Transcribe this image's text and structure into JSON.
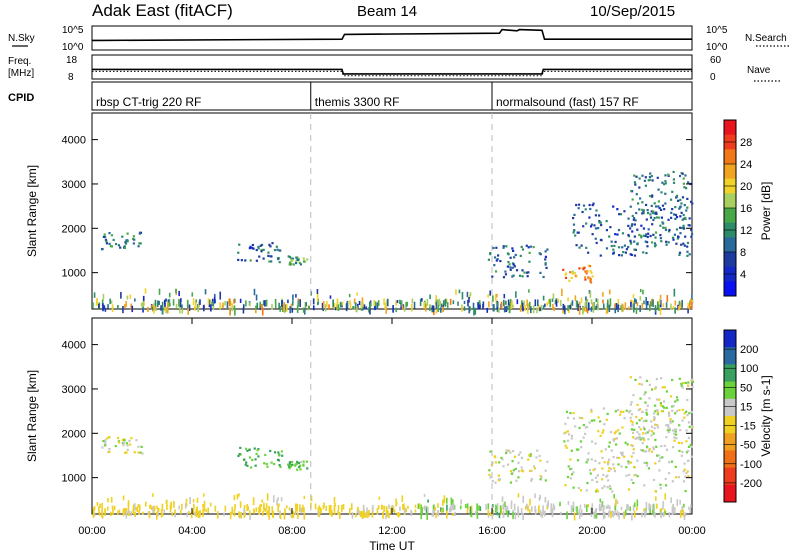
{
  "header": {
    "site": "Adak East (fitACF)",
    "beam": "Beam 14",
    "date": "10/Sep/2015"
  },
  "noise_panel": {
    "left_label": "N.Sky",
    "left_ticks": [
      "10^5",
      "10^0"
    ],
    "right_label": "N.Search",
    "right_ticks": [
      "10^5",
      "10^0"
    ]
  },
  "freq_panel": {
    "left_label_1": "Freq.",
    "left_label_2": "[MHz]",
    "left_ticks": [
      "18",
      "8"
    ],
    "right_label": "Nave",
    "right_ticks": [
      "60",
      "0"
    ]
  },
  "cpid_panel": {
    "label": "CPID",
    "modes": [
      {
        "name": "rbsp CT-trig 220 RF",
        "start_hour": 0
      },
      {
        "name": "themis 3300 RF",
        "start_hour": 8.75
      },
      {
        "name": "normalsound (fast) 157 RF",
        "start_hour": 16
      }
    ]
  },
  "power_colorbar": {
    "label": "Power [dB]",
    "ticks": [
      "28",
      "24",
      "20",
      "16",
      "12",
      "8",
      "4"
    ],
    "colors": [
      "#e8141e",
      "#f03c1e",
      "#f07818",
      "#f0a420",
      "#f0d22a",
      "#a8d060",
      "#48a848",
      "#2e8b6a",
      "#2a6a9a",
      "#1e3ca0",
      "#1428c8",
      "#0a10f0"
    ]
  },
  "velocity_colorbar": {
    "label": "Velocity [m s-1]",
    "ticks": [
      "200",
      "100",
      "50",
      "15",
      "-15",
      "-50",
      "-100",
      "-200"
    ],
    "colors": [
      "#1428c8",
      "#2a6aa0",
      "#3aa060",
      "#6ad23a",
      "#c8c8c8",
      "#f0d020",
      "#f0a020",
      "#f07018",
      "#f03c1e",
      "#e8141e"
    ]
  },
  "axes": {
    "ylabel": "Slant Range [km]",
    "yticks": [
      1000,
      2000,
      3000,
      4000
    ],
    "ylim": [
      180,
      4600
    ],
    "xlabel": "Time UT",
    "xticks": [
      "00:00",
      "04:00",
      "08:00",
      "12:00",
      "16:00",
      "20:00",
      "00:00"
    ],
    "xlim_hours": [
      0,
      24
    ],
    "dashed_lines_hours": [
      8.75,
      16
    ]
  },
  "chart_data": [
    {
      "type": "line",
      "panel": "noise",
      "series": [
        {
          "name": "N.Sky",
          "x": [
            0,
            0.3,
            10,
            10.1,
            16.3,
            16.4,
            17,
            17.1,
            18,
            18.1,
            24
          ],
          "y": [
            0.4,
            0.4,
            0.45,
            0.65,
            0.7,
            0.85,
            0.8,
            0.85,
            0.82,
            0.45,
            0.45
          ]
        },
        {
          "name": "N.Search",
          "x": [
            0,
            24
          ],
          "y": [
            0,
            0
          ]
        }
      ]
    },
    {
      "type": "line",
      "panel": "freq",
      "series": [
        {
          "name": "Freq.",
          "x": [
            0,
            0.2,
            10,
            10.05,
            18,
            18.05,
            24
          ],
          "y": [
            12,
            12,
            12,
            10.1,
            10.1,
            12,
            12
          ]
        },
        {
          "name": "Nave",
          "x": [
            0,
            10,
            10.05,
            18,
            18.05,
            24
          ],
          "y": [
            19,
            19,
            8,
            8,
            19,
            19
          ]
        }
      ]
    },
    {
      "type": "heatmap",
      "panel": "power",
      "quantity": "Power [dB]",
      "clusters": [
        {
          "t0": 0.3,
          "t1": 2.0,
          "r0": 1550,
          "r1": 1950,
          "value": 10
        },
        {
          "t0": 5.8,
          "t1": 7.6,
          "r0": 1250,
          "r1": 1700,
          "value": 8
        },
        {
          "t0": 7.8,
          "t1": 8.6,
          "r0": 1200,
          "r1": 1400,
          "value": 14
        },
        {
          "t0": 15.8,
          "t1": 18.2,
          "r0": 900,
          "r1": 1650,
          "value": 8
        },
        {
          "t0": 18.8,
          "t1": 20.0,
          "r0": 800,
          "r1": 1200,
          "value": 22
        },
        {
          "t0": 19.2,
          "t1": 24.0,
          "r0": 1400,
          "r1": 2600,
          "value": 7
        },
        {
          "t0": 21.5,
          "t1": 24.0,
          "r0": 1600,
          "r1": 3300,
          "value": 9
        }
      ]
    },
    {
      "type": "heatmap",
      "panel": "velocity",
      "quantity": "Velocity [m s-1]",
      "clusters": [
        {
          "t0": 0.3,
          "t1": 2.0,
          "r0": 1550,
          "r1": 1950,
          "value": 0
        },
        {
          "t0": 5.8,
          "t1": 7.6,
          "r0": 1250,
          "r1": 1700,
          "value": 60
        },
        {
          "t0": 7.8,
          "t1": 8.6,
          "r0": 1200,
          "r1": 1400,
          "value": 40
        },
        {
          "t0": 15.8,
          "t1": 18.2,
          "r0": 900,
          "r1": 1650,
          "value": 0
        },
        {
          "t0": 18.8,
          "t1": 24.0,
          "r0": 700,
          "r1": 2600,
          "value": 0
        },
        {
          "t0": 21.5,
          "t1": 24.0,
          "r0": 1600,
          "r1": 3300,
          "value": 0
        }
      ]
    }
  ]
}
